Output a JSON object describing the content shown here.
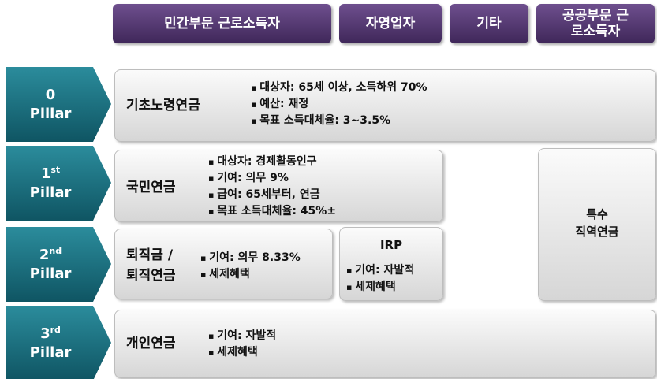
{
  "header": {
    "columns": [
      "민간부문 근로소득자",
      "자영업자",
      "기타",
      "공공부문 근로소득자"
    ]
  },
  "pillars": [
    {
      "number": "0",
      "label": "Pillar"
    },
    {
      "number": "1",
      "suffix": "st",
      "label": "Pillar"
    },
    {
      "number": "2",
      "suffix": "nd",
      "label": "Pillar"
    },
    {
      "number": "3",
      "suffix": "rd",
      "label": "Pillar"
    }
  ],
  "boxes": {
    "basic_pension": {
      "title": "기초노령연금",
      "bullets": [
        "대상자: 65세 이상, 소득하위 70%",
        "예산: 재정",
        "목표 소득대체율: 3~3.5%"
      ]
    },
    "national_pension": {
      "title": "국민연금",
      "bullets": [
        "대상자: 경제활동인구",
        "기여: 의무 9%",
        "급여: 65세부터, 연금",
        "목표 소득대체율: 45%±"
      ]
    },
    "retirement": {
      "title_lines": [
        "퇴직금 /",
        "퇴직연금"
      ],
      "bullets": [
        "기여: 의무 8.33%",
        "세제혜택"
      ]
    },
    "irp": {
      "title": "IRP",
      "bullets": [
        "기여: 자발적",
        "세제혜택"
      ]
    },
    "personal": {
      "title": "개인연금",
      "bullets": [
        "기여: 자발적",
        "세제혜택"
      ]
    },
    "special": {
      "title_lines": [
        "특수",
        "직역연금"
      ]
    }
  }
}
